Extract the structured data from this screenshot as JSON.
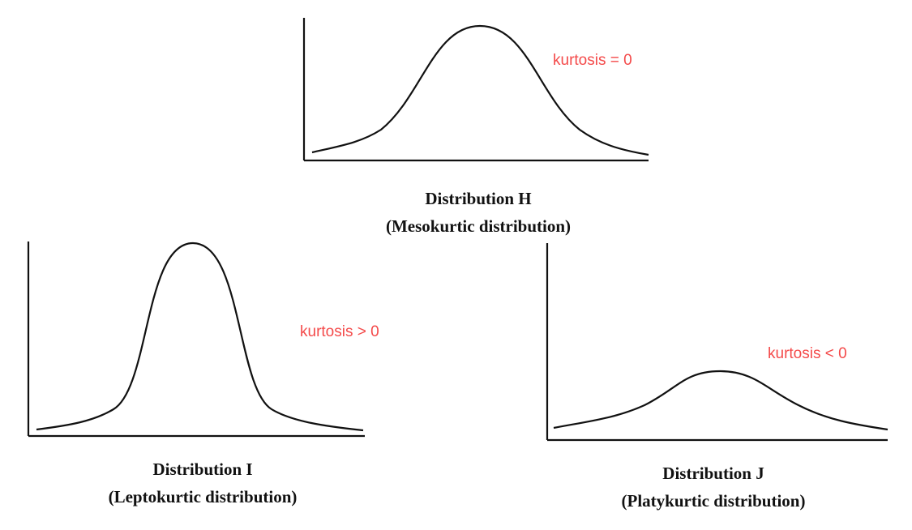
{
  "colors": {
    "curve": "#111111",
    "axis": "#111111",
    "annotation": "#f44a4a"
  },
  "panels": [
    {
      "id": "H",
      "title": "Distribution H",
      "subtitle": "(Mesokurtic distribution)",
      "annotation": "kurtosis = 0",
      "shape": "bell curve, moderate peak",
      "kurtosis_sign": "zero"
    },
    {
      "id": "I",
      "title": "Distribution I",
      "subtitle": "(Leptokurtic distribution)",
      "annotation": "kurtosis > 0",
      "shape": "tall narrow peak",
      "kurtosis_sign": "positive"
    },
    {
      "id": "J",
      "title": "Distribution J",
      "subtitle": "(Platykurtic distribution)",
      "annotation": "kurtosis < 0",
      "shape": "low flat peak",
      "kurtosis_sign": "negative"
    }
  ]
}
